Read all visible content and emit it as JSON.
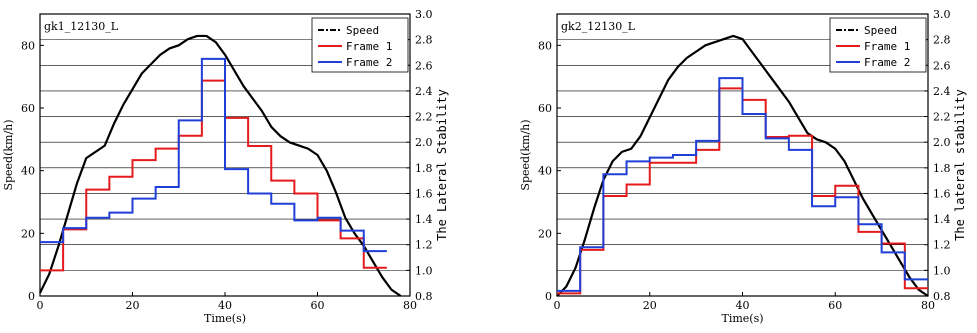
{
  "chart_data": [
    {
      "type": "line",
      "title": "gk1_12130_L",
      "xlabel": "Time(s)",
      "ylabel": "Speed(km/h)",
      "y2label": "The Lateral Stability",
      "xlim": [
        0,
        80
      ],
      "ylim": [
        0,
        90
      ],
      "y2lim": [
        0.8,
        3.0
      ],
      "x_ticks": [
        0,
        20,
        40,
        60,
        80
      ],
      "y_ticks": [
        0,
        20,
        40,
        60,
        80
      ],
      "y2_ticks": [
        0.8,
        1.0,
        1.2,
        1.4,
        1.6,
        1.8,
        2.0,
        2.2,
        2.4,
        2.6,
        2.8,
        3.0
      ],
      "grid": "horizontal (right axis)",
      "legend": "top-right",
      "series": [
        {
          "name": "Speed",
          "color": "#000000",
          "axis": "left",
          "x": [
            0,
            2,
            4,
            6,
            8,
            10,
            12,
            14,
            16,
            18,
            20,
            22,
            24,
            26,
            28,
            30,
            32,
            34,
            36,
            38,
            40,
            42,
            44,
            46,
            48,
            50,
            52,
            54,
            56,
            58,
            60,
            62,
            64,
            66,
            68,
            70,
            72,
            74,
            76,
            78
          ],
          "y": [
            1,
            7,
            16,
            26,
            36,
            44,
            46,
            48,
            55,
            61,
            66,
            71,
            74,
            77,
            79,
            80,
            82,
            83,
            83,
            81,
            77,
            72,
            67,
            63,
            59,
            54,
            51,
            49,
            48,
            47,
            45,
            40,
            33,
            25,
            20,
            16,
            11,
            6,
            2,
            0
          ]
        },
        {
          "name": "Frame 1",
          "color": "#e41a1c",
          "axis": "right",
          "step_edges": [
            0,
            5,
            10,
            15,
            20,
            25,
            30,
            35,
            40,
            45,
            50,
            55,
            60,
            65,
            70,
            75
          ],
          "values": [
            1.0,
            1.32,
            1.63,
            1.73,
            1.86,
            1.95,
            2.05,
            2.48,
            2.19,
            1.97,
            1.7,
            1.6,
            1.39,
            1.25,
            1.02
          ]
        },
        {
          "name": "Frame 2",
          "color": "#1f3fd6",
          "axis": "right",
          "step_edges": [
            0,
            5,
            10,
            15,
            20,
            25,
            30,
            35,
            40,
            45,
            50,
            55,
            60,
            65,
            70,
            75
          ],
          "values": [
            1.22,
            1.33,
            1.41,
            1.45,
            1.56,
            1.65,
            2.17,
            2.65,
            1.79,
            1.6,
            1.52,
            1.39,
            1.41,
            1.31,
            1.15
          ]
        }
      ]
    },
    {
      "type": "line",
      "title": "gk2_12130_L",
      "xlabel": "Time(s)",
      "ylabel": "Speed(km/h)",
      "y2label": "The lateral stability",
      "xlim": [
        0,
        80
      ],
      "ylim": [
        0,
        90
      ],
      "y2lim": [
        0.8,
        3.0
      ],
      "x_ticks": [
        0,
        20,
        40,
        60,
        80
      ],
      "y_ticks": [
        0,
        20,
        40,
        60,
        80
      ],
      "y2_ticks": [
        0.8,
        1.0,
        1.2,
        1.4,
        1.6,
        1.8,
        2.0,
        2.2,
        2.4,
        2.6,
        2.8,
        3.0
      ],
      "grid": "horizontal (right axis)",
      "legend": "top-right",
      "series": [
        {
          "name": "Speed",
          "color": "#000000",
          "axis": "left",
          "x": [
            0,
            2,
            4,
            6,
            8,
            10,
            12,
            14,
            16,
            18,
            20,
            22,
            24,
            26,
            28,
            30,
            32,
            34,
            36,
            38,
            40,
            42,
            44,
            46,
            48,
            50,
            52,
            54,
            56,
            58,
            60,
            62,
            64,
            66,
            68,
            70,
            72,
            74,
            76,
            78,
            80
          ],
          "y": [
            0,
            3,
            9,
            18,
            28,
            37,
            43,
            46,
            47,
            51,
            57,
            63,
            69,
            73,
            76,
            78,
            80,
            81,
            82,
            83,
            82,
            78,
            74,
            70,
            66,
            62,
            57,
            52,
            50,
            49,
            47,
            43,
            37,
            31,
            26,
            21,
            16,
            11,
            6,
            2,
            0
          ]
        },
        {
          "name": "Frame 1",
          "color": "#e41a1c",
          "axis": "right",
          "step_edges": [
            0,
            5,
            10,
            15,
            20,
            25,
            30,
            35,
            40,
            45,
            50,
            55,
            60,
            65,
            70,
            75,
            80
          ],
          "values": [
            0.82,
            1.16,
            1.58,
            1.67,
            1.84,
            1.84,
            1.94,
            2.42,
            2.33,
            2.04,
            2.05,
            1.58,
            1.66,
            1.3,
            1.21,
            0.86
          ]
        },
        {
          "name": "Frame 2",
          "color": "#1f3fd6",
          "axis": "right",
          "step_edges": [
            0,
            5,
            10,
            15,
            20,
            25,
            30,
            35,
            40,
            45,
            50,
            55,
            60,
            65,
            70,
            75,
            80
          ],
          "values": [
            0.84,
            1.18,
            1.75,
            1.85,
            1.88,
            1.9,
            2.01,
            2.5,
            2.22,
            2.03,
            1.94,
            1.5,
            1.57,
            1.36,
            1.14,
            0.93
          ]
        }
      ]
    }
  ]
}
